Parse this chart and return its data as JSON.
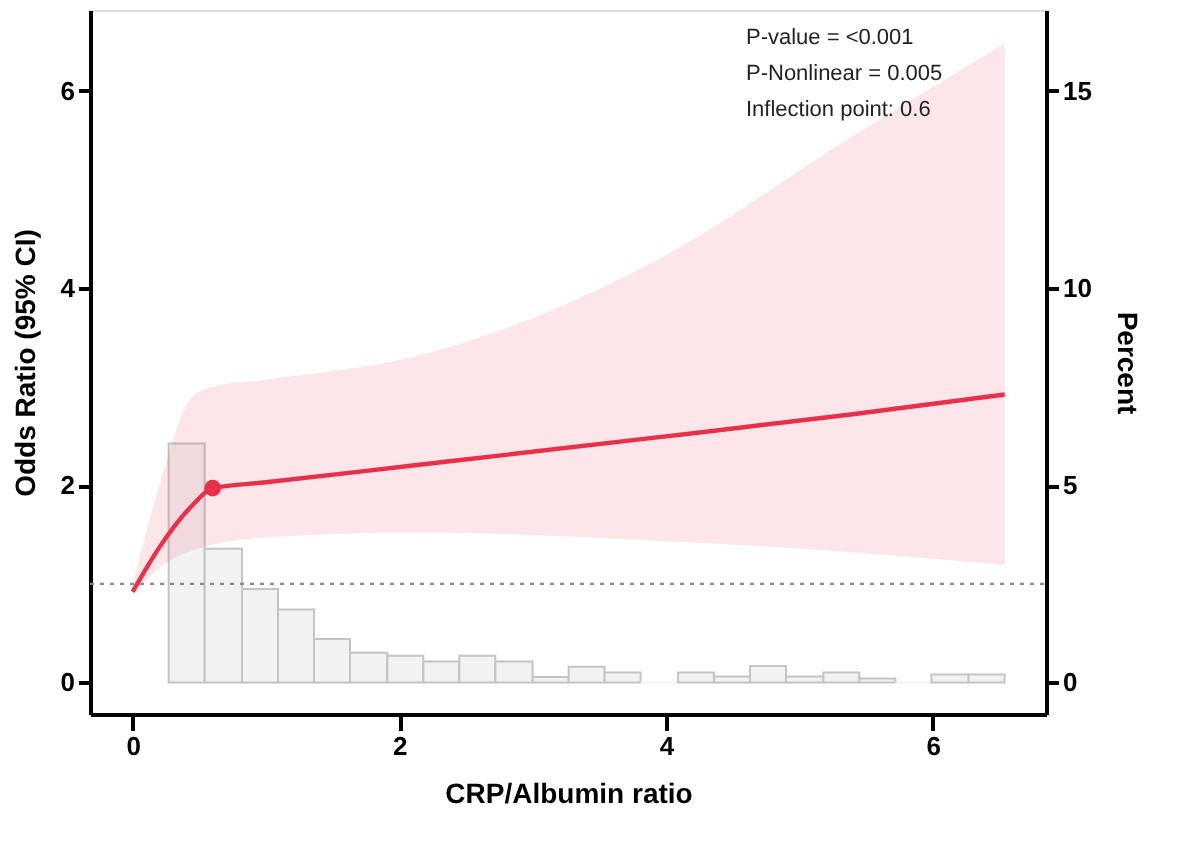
{
  "chart_data": {
    "type": "line",
    "xlabel": "CRP/Albumin ratio",
    "ylabel": "Odds Ratio (95% CI)",
    "y2label": "Percent",
    "xlim": [
      -0.32,
      6.85
    ],
    "xticks": [
      0,
      2,
      4,
      6
    ],
    "ylim": [
      -0.32,
      6.82
    ],
    "yticks": [
      0,
      2,
      4,
      6
    ],
    "y2lim": [
      -0.8,
      17.05
    ],
    "y2ticks": [
      0,
      5,
      10,
      15
    ],
    "grid": false,
    "series": [
      {
        "type": "histogram",
        "axis": "y2",
        "color": "#f2f2f2",
        "bins": [
          0.27,
          0.54,
          0.82,
          1.09,
          1.36,
          1.63,
          1.91,
          2.18,
          2.45,
          2.72,
          3.0,
          3.27,
          3.54,
          3.81,
          4.09,
          4.36,
          4.63,
          4.9,
          5.18,
          5.45,
          5.72,
          5.99,
          6.27,
          6.54
        ],
        "values": [
          6.06,
          3.39,
          2.37,
          1.85,
          1.1,
          0.75,
          0.68,
          0.53,
          0.68,
          0.53,
          0.14,
          0.4,
          0.25,
          0,
          0.25,
          0.15,
          0.42,
          0.15,
          0.25,
          0.1,
          0,
          0.2,
          0.2
        ]
      },
      {
        "color": "#e8304a",
        "x": [
          0,
          0.2,
          0.45,
          0.6,
          1.0,
          2.1,
          3.9,
          5.4,
          6.54
        ],
        "values": [
          0.92,
          1.37,
          1.8,
          1.97,
          2.03,
          2.2,
          2.48,
          2.72,
          2.92
        ],
        "lower": [
          0.88,
          1.16,
          1.34,
          1.4,
          1.47,
          1.52,
          1.44,
          1.32,
          1.19
        ],
        "upper": [
          0.98,
          2.0,
          2.9,
          3.0,
          3.07,
          3.3,
          4.26,
          5.54,
          6.48
        ]
      },
      {
        "type": "scatter",
        "color": "#e8304a",
        "marker": "circle",
        "x": [
          0.6
        ],
        "values": [
          1.97
        ]
      }
    ],
    "ref_lines": [
      {
        "axis": "y",
        "value": 1,
        "color": "#888888",
        "line_style": "dotted"
      }
    ],
    "annotations": [
      "P-value = <0.001",
      "P-Nonlinear = 0.005",
      "Inflection point: 0.6"
    ]
  }
}
